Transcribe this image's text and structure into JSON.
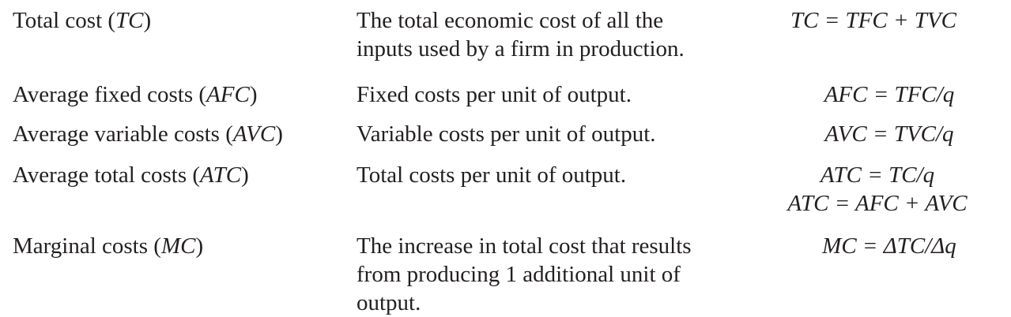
{
  "rows": [
    {
      "term": "Total cost (",
      "abbr": "TC",
      "term_close": ")",
      "definition_lines": [
        "The total economic cost of all the",
        "inputs used by a firm in production."
      ],
      "formulas": [
        "TC = TFC + TVC"
      ]
    },
    {
      "term": "Average fixed costs (",
      "abbr": "AFC",
      "term_close": ")",
      "definition_lines": [
        "Fixed costs per unit of output."
      ],
      "formulas": [
        "AFC = TFC/q"
      ]
    },
    {
      "term": "Average variable costs (",
      "abbr": "AVC",
      "term_close": ")",
      "definition_lines": [
        "Variable costs per unit of output."
      ],
      "formulas": [
        "AVC = TVC/q"
      ]
    },
    {
      "term": "Average total costs (",
      "abbr": "ATC",
      "term_close": ")",
      "definition_lines": [
        "Total costs per unit of output."
      ],
      "formulas": [
        "ATC = TC/q",
        "ATC = AFC + AVC"
      ]
    },
    {
      "term": "Marginal costs (",
      "abbr": "MC",
      "term_close": ")",
      "definition_lines": [
        "The increase in total cost that results",
        "from producing 1 additional unit of",
        "output."
      ],
      "formulas": [
        "MC = ΔTC/Δq"
      ]
    }
  ]
}
